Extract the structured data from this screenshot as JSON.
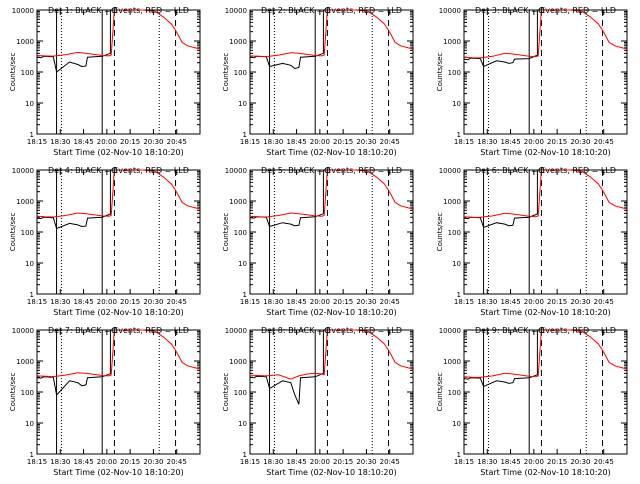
{
  "window": {
    "background": "#ffffff"
  },
  "colors": {
    "events": "#000000",
    "lld": "#ff0000",
    "axis": "#000000"
  },
  "chart_data": [
    {
      "type": "line",
      "title": "Det 1: BLACK = Events, RED = LLD",
      "xlabel": "Start Time (02-Nov-10 18:10:20)",
      "ylabel": "Counts/sec",
      "y_scale": "log",
      "ylim": [
        1,
        10000
      ],
      "yticks": [
        "1",
        "10",
        "100",
        "1000",
        "10000"
      ],
      "xticks": [
        "18:15",
        "18:30",
        "18:45",
        "20:00",
        "20:15",
        "20:30",
        "20:45"
      ],
      "series": [
        {
          "name": "Events",
          "color": "#000000",
          "x": [
            0,
            0.05,
            0.08,
            0.2,
            0.24,
            0.4,
            0.5,
            0.55,
            0.6,
            0.62,
            0.8,
            0.9,
            0.9
          ],
          "y": [
            300,
            290,
            320,
            310,
            100,
            210,
            175,
            150,
            155,
            300,
            320,
            400,
            10000
          ]
        },
        {
          "name": "LLD",
          "color": "#ff0000",
          "x": [
            0,
            0.1,
            0.2,
            0.35,
            0.5,
            0.6,
            0.7,
            0.8,
            0.88,
            0.91,
            0.95,
            1.05,
            1.15,
            1.3,
            1.45,
            1.55,
            1.65,
            1.72,
            1.78,
            1.85,
            1.92,
            2.0
          ],
          "y": [
            340,
            330,
            325,
            360,
            430,
            400,
            370,
            340,
            330,
            350,
            10000,
            10000,
            10000,
            10000,
            9000,
            6000,
            3500,
            1800,
            900,
            700,
            620,
            550
          ]
        }
      ]
    },
    {
      "type": "line",
      "title": "Det 2: BLACK = Events, RED = LLD",
      "xlabel": "Start Time (02-Nov-10 18:10:20)",
      "ylabel": "Counts/sec",
      "y_scale": "log",
      "ylim": [
        1,
        10000
      ],
      "yticks": [
        "1",
        "10",
        "100",
        "1000",
        "10000"
      ],
      "xticks": [
        "18:15",
        "18:30",
        "18:45",
        "20:00",
        "20:15",
        "20:30",
        "20:45"
      ],
      "series": [
        {
          "name": "Events",
          "color": "#000000",
          "x": [
            0,
            0.05,
            0.08,
            0.2,
            0.24,
            0.4,
            0.5,
            0.55,
            0.6,
            0.62,
            0.8,
            0.9,
            0.9
          ],
          "y": [
            300,
            290,
            320,
            310,
            150,
            190,
            165,
            130,
            140,
            300,
            320,
            400,
            10000
          ]
        },
        {
          "name": "LLD",
          "color": "#ff0000",
          "x": [
            0,
            0.1,
            0.2,
            0.35,
            0.5,
            0.6,
            0.7,
            0.8,
            0.88,
            0.91,
            0.95,
            1.05,
            1.15,
            1.3,
            1.45,
            1.55,
            1.65,
            1.72,
            1.78,
            1.85,
            1.92,
            2.0
          ],
          "y": [
            330,
            320,
            315,
            350,
            420,
            400,
            370,
            340,
            330,
            350,
            10000,
            10000,
            10000,
            10000,
            9000,
            6000,
            3500,
            1800,
            900,
            700,
            620,
            550
          ]
        }
      ]
    },
    {
      "type": "line",
      "title": "Det 3: BLACK = Events, RED = LLD",
      "xlabel": "Start Time (02-Nov-10 18:10:20)",
      "ylabel": "Counts/sec",
      "y_scale": "log",
      "ylim": [
        1,
        10000
      ],
      "yticks": [
        "1",
        "10",
        "100",
        "1000",
        "10000"
      ],
      "xticks": [
        "18:15",
        "18:30",
        "18:45",
        "20:00",
        "20:15",
        "20:30",
        "20:45"
      ],
      "series": [
        {
          "name": "Events",
          "color": "#000000",
          "x": [
            0,
            0.05,
            0.08,
            0.2,
            0.24,
            0.4,
            0.5,
            0.55,
            0.6,
            0.62,
            0.8,
            0.9,
            0.9
          ],
          "y": [
            260,
            250,
            280,
            270,
            150,
            230,
            210,
            190,
            200,
            260,
            270,
            350,
            10000
          ]
        },
        {
          "name": "LLD",
          "color": "#ff0000",
          "x": [
            0,
            0.1,
            0.2,
            0.35,
            0.5,
            0.6,
            0.7,
            0.8,
            0.88,
            0.91,
            0.95,
            1.05,
            1.15,
            1.3,
            1.45,
            1.55,
            1.65,
            1.72,
            1.78,
            1.85,
            1.92,
            2.0
          ],
          "y": [
            300,
            290,
            285,
            320,
            400,
            380,
            350,
            320,
            310,
            330,
            10000,
            10000,
            10000,
            10000,
            9000,
            6000,
            3500,
            1800,
            900,
            700,
            620,
            550
          ]
        }
      ]
    },
    {
      "type": "line",
      "title": "Det 4: BLACK = Events, RED = LLD",
      "xlabel": "Start Time (02-Nov-10 18:10:20)",
      "ylabel": "Counts/sec",
      "y_scale": "log",
      "ylim": [
        1,
        10000
      ],
      "yticks": [
        "1",
        "10",
        "100",
        "1000",
        "10000"
      ],
      "xticks": [
        "18:15",
        "18:30",
        "18:45",
        "20:00",
        "20:15",
        "20:30",
        "20:45"
      ],
      "series": [
        {
          "name": "Events",
          "color": "#000000",
          "x": [
            0,
            0.05,
            0.08,
            0.2,
            0.24,
            0.4,
            0.5,
            0.55,
            0.6,
            0.62,
            0.8,
            0.9,
            0.9
          ],
          "y": [
            280,
            270,
            300,
            290,
            130,
            190,
            170,
            150,
            155,
            280,
            300,
            380,
            10000
          ]
        },
        {
          "name": "LLD",
          "color": "#ff0000",
          "x": [
            0,
            0.1,
            0.2,
            0.35,
            0.5,
            0.6,
            0.7,
            0.8,
            0.88,
            0.91,
            0.95,
            1.05,
            1.15,
            1.3,
            1.45,
            1.55,
            1.65,
            1.72,
            1.78,
            1.85,
            1.92,
            2.0
          ],
          "y": [
            320,
            310,
            305,
            340,
            410,
            390,
            360,
            330,
            320,
            340,
            10000,
            10000,
            10000,
            10000,
            9000,
            6000,
            3500,
            1800,
            900,
            700,
            620,
            550
          ]
        }
      ]
    },
    {
      "type": "line",
      "title": "Det 5: BLACK = Events, RED = LLD",
      "xlabel": "Start Time (02-Nov-10 18:10:20)",
      "ylabel": "Counts/sec",
      "y_scale": "log",
      "ylim": [
        1,
        10000
      ],
      "yticks": [
        "1",
        "10",
        "100",
        "1000",
        "10000"
      ],
      "xticks": [
        "18:15",
        "18:30",
        "18:45",
        "20:00",
        "20:15",
        "20:30",
        "20:45"
      ],
      "series": [
        {
          "name": "Events",
          "color": "#000000",
          "x": [
            0,
            0.05,
            0.08,
            0.2,
            0.24,
            0.4,
            0.5,
            0.55,
            0.6,
            0.62,
            0.8,
            0.9,
            0.9
          ],
          "y": [
            290,
            280,
            310,
            300,
            150,
            200,
            180,
            160,
            165,
            290,
            310,
            390,
            10000
          ]
        },
        {
          "name": "LLD",
          "color": "#ff0000",
          "x": [
            0,
            0.1,
            0.2,
            0.35,
            0.5,
            0.6,
            0.7,
            0.8,
            0.88,
            0.91,
            0.95,
            1.05,
            1.15,
            1.3,
            1.45,
            1.55,
            1.65,
            1.72,
            1.78,
            1.85,
            1.92,
            2.0
          ],
          "y": [
            320,
            310,
            305,
            340,
            410,
            390,
            360,
            330,
            320,
            340,
            10000,
            10000,
            10000,
            10000,
            9000,
            6000,
            3500,
            1800,
            900,
            700,
            620,
            550
          ]
        }
      ]
    },
    {
      "type": "line",
      "title": "Det 6: BLACK = Events, RED = LLD",
      "xlabel": "Start Time (02-Nov-10 18:10:20)",
      "ylabel": "Counts/sec",
      "y_scale": "log",
      "ylim": [
        1,
        10000
      ],
      "yticks": [
        "1",
        "10",
        "100",
        "1000",
        "10000"
      ],
      "xticks": [
        "18:15",
        "18:30",
        "18:45",
        "20:00",
        "20:15",
        "20:30",
        "20:45"
      ],
      "series": [
        {
          "name": "Events",
          "color": "#000000",
          "x": [
            0,
            0.05,
            0.08,
            0.2,
            0.24,
            0.4,
            0.5,
            0.55,
            0.6,
            0.62,
            0.8,
            0.9,
            0.9
          ],
          "y": [
            280,
            270,
            300,
            290,
            140,
            200,
            180,
            160,
            165,
            280,
            300,
            380,
            10000
          ]
        },
        {
          "name": "LLD",
          "color": "#ff0000",
          "x": [
            0,
            0.1,
            0.2,
            0.35,
            0.5,
            0.6,
            0.7,
            0.8,
            0.88,
            0.91,
            0.95,
            1.05,
            1.15,
            1.3,
            1.45,
            1.55,
            1.65,
            1.72,
            1.78,
            1.85,
            1.92,
            2.0
          ],
          "y": [
            310,
            300,
            295,
            330,
            400,
            380,
            350,
            320,
            310,
            330,
            10000,
            10000,
            10000,
            10000,
            9000,
            6000,
            3500,
            1800,
            900,
            700,
            620,
            550
          ]
        }
      ]
    },
    {
      "type": "line",
      "title": "Det 7: BLACK = Events, RED = LLD",
      "xlabel": "Start Time (02-Nov-10 18:10:20)",
      "ylabel": "Counts/sec",
      "y_scale": "log",
      "ylim": [
        1,
        10000
      ],
      "yticks": [
        "1",
        "10",
        "100",
        "1000",
        "10000"
      ],
      "xticks": [
        "18:15",
        "18:30",
        "18:45",
        "20:00",
        "20:15",
        "20:30",
        "20:45"
      ],
      "series": [
        {
          "name": "Events",
          "color": "#000000",
          "x": [
            0,
            0.05,
            0.08,
            0.2,
            0.24,
            0.4,
            0.5,
            0.55,
            0.6,
            0.62,
            0.8,
            0.9,
            0.9
          ],
          "y": [
            290,
            280,
            310,
            300,
            80,
            230,
            200,
            160,
            170,
            290,
            310,
            390,
            10000
          ]
        },
        {
          "name": "LLD",
          "color": "#ff0000",
          "x": [
            0,
            0.1,
            0.2,
            0.35,
            0.5,
            0.6,
            0.7,
            0.8,
            0.88,
            0.91,
            0.95,
            1.05,
            1.15,
            1.3,
            1.45,
            1.55,
            1.65,
            1.72,
            1.78,
            1.85,
            1.92,
            2.0
          ],
          "y": [
            330,
            320,
            315,
            350,
            420,
            400,
            370,
            340,
            330,
            350,
            10000,
            10000,
            10000,
            10000,
            9000,
            6000,
            3500,
            1800,
            900,
            700,
            620,
            550
          ]
        }
      ]
    },
    {
      "type": "line",
      "title": "Det 8: BLACK = Events, RED = LLD",
      "xlabel": "Start Time (02-Nov-10 18:10:20)",
      "ylabel": "Counts/sec",
      "y_scale": "log",
      "ylim": [
        1,
        10000
      ],
      "yticks": [
        "1",
        "10",
        "100",
        "1000",
        "10000"
      ],
      "xticks": [
        "18:15",
        "18:30",
        "18:45",
        "20:00",
        "20:15",
        "20:30",
        "20:45"
      ],
      "series": [
        {
          "name": "Events",
          "color": "#000000",
          "x": [
            0,
            0.05,
            0.08,
            0.2,
            0.24,
            0.4,
            0.5,
            0.55,
            0.6,
            0.62,
            0.8,
            0.9,
            0.9
          ],
          "y": [
            300,
            290,
            320,
            310,
            130,
            230,
            200,
            80,
            40,
            290,
            310,
            400,
            10000
          ]
        },
        {
          "name": "LLD",
          "color": "#ff0000",
          "x": [
            0,
            0.1,
            0.2,
            0.35,
            0.5,
            0.6,
            0.7,
            0.8,
            0.88,
            0.91,
            0.95,
            1.05,
            1.15,
            1.3,
            1.45,
            1.55,
            1.65,
            1.72,
            1.78,
            1.85,
            1.92,
            2.0
          ],
          "y": [
            350,
            340,
            330,
            360,
            260,
            330,
            380,
            400,
            380,
            360,
            10000,
            10000,
            10000,
            10000,
            9000,
            6000,
            3500,
            1800,
            900,
            700,
            620,
            550
          ]
        }
      ]
    },
    {
      "type": "line",
      "title": "Det 9: BLACK = Events, RED = LLD",
      "xlabel": "Start Time (02-Nov-10 18:10:20)",
      "ylabel": "Counts/sec",
      "y_scale": "log",
      "ylim": [
        1,
        10000
      ],
      "yticks": [
        "1",
        "10",
        "100",
        "1000",
        "10000"
      ],
      "xticks": [
        "18:15",
        "18:30",
        "18:45",
        "20:00",
        "20:15",
        "20:30",
        "20:45"
      ],
      "series": [
        {
          "name": "Events",
          "color": "#000000",
          "x": [
            0,
            0.05,
            0.08,
            0.2,
            0.24,
            0.4,
            0.5,
            0.55,
            0.6,
            0.62,
            0.8,
            0.9,
            0.9
          ],
          "y": [
            270,
            260,
            290,
            280,
            150,
            230,
            210,
            190,
            200,
            270,
            290,
            360,
            10000
          ]
        },
        {
          "name": "LLD",
          "color": "#ff0000",
          "x": [
            0,
            0.1,
            0.2,
            0.35,
            0.5,
            0.6,
            0.7,
            0.8,
            0.88,
            0.91,
            0.95,
            1.05,
            1.15,
            1.3,
            1.45,
            1.55,
            1.65,
            1.72,
            1.78,
            1.85,
            1.92,
            2.0
          ],
          "y": [
            310,
            300,
            295,
            330,
            400,
            380,
            350,
            320,
            310,
            330,
            10000,
            10000,
            10000,
            10000,
            9000,
            6000,
            3500,
            1800,
            900,
            700,
            620,
            550
          ]
        }
      ]
    }
  ]
}
